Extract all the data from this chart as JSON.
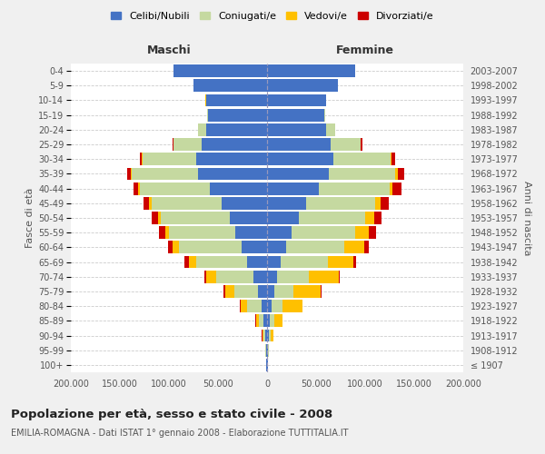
{
  "age_groups": [
    "100+",
    "95-99",
    "90-94",
    "85-89",
    "80-84",
    "75-79",
    "70-74",
    "65-69",
    "60-64",
    "55-59",
    "50-54",
    "45-49",
    "40-44",
    "35-39",
    "30-34",
    "25-29",
    "20-24",
    "15-19",
    "10-14",
    "5-9",
    "0-4"
  ],
  "birth_years": [
    "≤ 1907",
    "1908-1912",
    "1913-1917",
    "1918-1922",
    "1923-1927",
    "1928-1932",
    "1933-1937",
    "1938-1942",
    "1943-1947",
    "1948-1952",
    "1953-1957",
    "1958-1962",
    "1963-1967",
    "1968-1972",
    "1973-1977",
    "1978-1982",
    "1983-1987",
    "1988-1992",
    "1993-1997",
    "1998-2002",
    "2003-2007"
  ],
  "maschi_celibi": [
    500,
    1000,
    2000,
    3500,
    6000,
    9000,
    14000,
    20000,
    26000,
    32000,
    38000,
    46000,
    58000,
    70000,
    72000,
    67000,
    62000,
    60000,
    62000,
    75000,
    95000
  ],
  "maschi_coniugati": [
    200,
    600,
    2000,
    5000,
    14000,
    24000,
    38000,
    52000,
    64000,
    68000,
    70000,
    72000,
    72000,
    68000,
    55000,
    28000,
    8000,
    1000,
    500,
    200,
    100
  ],
  "maschi_vedovi": [
    100,
    300,
    1000,
    3000,
    7000,
    10000,
    10000,
    8000,
    6000,
    4000,
    3000,
    2000,
    1500,
    1000,
    500,
    200,
    100,
    50,
    30,
    10,
    5
  ],
  "maschi_divorziati": [
    20,
    50,
    100,
    200,
    400,
    1000,
    2000,
    4000,
    5000,
    6000,
    6500,
    6000,
    5000,
    4000,
    2000,
    800,
    200,
    50,
    20,
    10,
    5
  ],
  "femmine_celibi": [
    500,
    1000,
    2000,
    3000,
    5000,
    7000,
    10000,
    14000,
    19000,
    25000,
    32000,
    40000,
    53000,
    63000,
    68000,
    65000,
    60000,
    58000,
    60000,
    72000,
    90000
  ],
  "femmine_coniugati": [
    200,
    500,
    1500,
    4000,
    11000,
    20000,
    33000,
    48000,
    60000,
    65000,
    68000,
    70000,
    72000,
    68000,
    58000,
    30000,
    9000,
    1500,
    600,
    200,
    100
  ],
  "femmine_vedovi": [
    200,
    600,
    3000,
    9000,
    20000,
    28000,
    30000,
    26000,
    20000,
    14000,
    9000,
    6000,
    3000,
    2000,
    1000,
    400,
    150,
    50,
    20,
    10,
    5
  ],
  "femmine_divorziati": [
    20,
    50,
    100,
    200,
    300,
    600,
    1500,
    3000,
    5000,
    7000,
    8000,
    8000,
    9000,
    7000,
    4000,
    1500,
    300,
    80,
    20,
    10,
    5
  ],
  "colors": {
    "celibi": "#4472c4",
    "coniugati": "#c5d9a0",
    "vedovi": "#ffc000",
    "divorziati": "#cc0000"
  },
  "title": "Popolazione per età, sesso e stato civile - 2008",
  "subtitle": "EMILIA-ROMAGNA - Dati ISTAT 1° gennaio 2008 - Elaborazione TUTTITALIA.IT",
  "ylabel_left": "Fasce di età",
  "ylabel_right": "Anni di nascita",
  "xlabel_left": "Maschi",
  "xlabel_right": "Femmine",
  "xlim": 200000,
  "bg_color": "#f0f0f0",
  "plot_bg": "#ffffff",
  "legend_labels": [
    "Celibi/Nubili",
    "Coniugati/e",
    "Vedovi/e",
    "Divorziati/e"
  ]
}
